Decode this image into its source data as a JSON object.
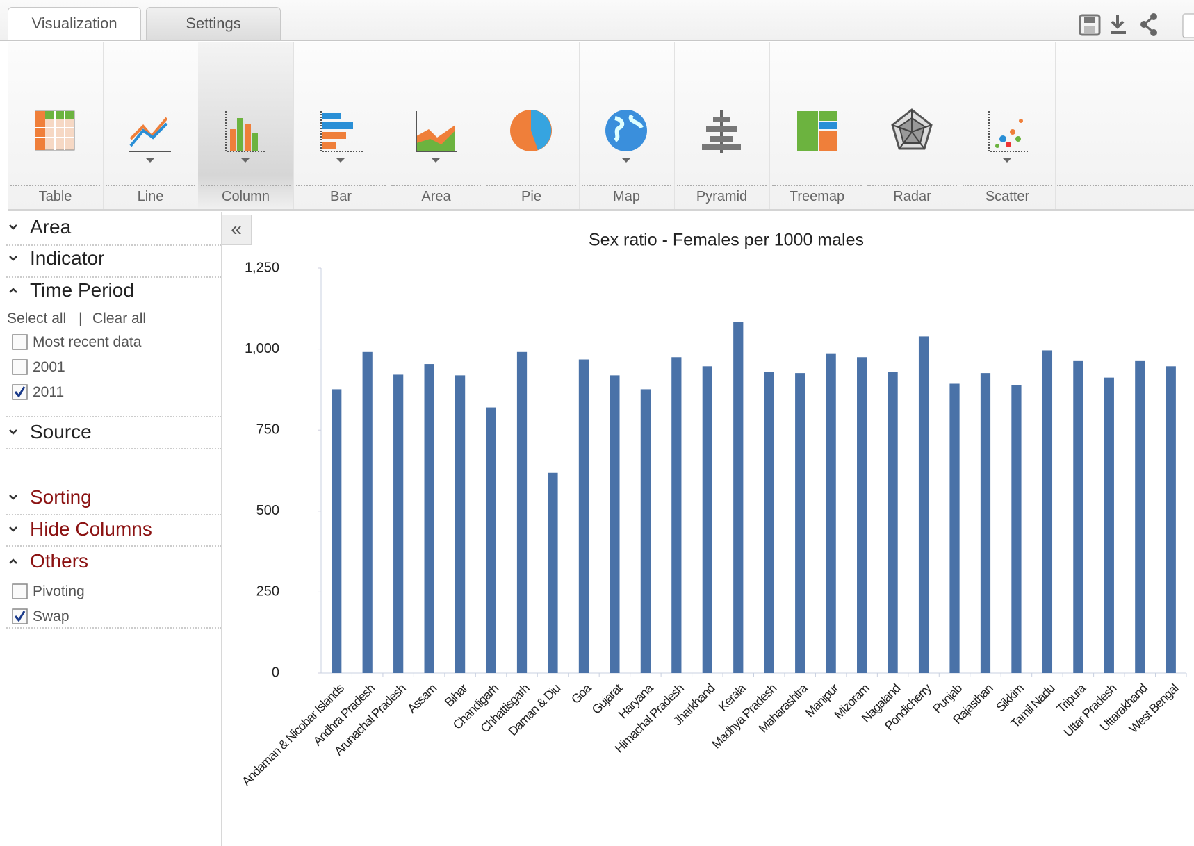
{
  "tabs": [
    "Visualization",
    "Settings"
  ],
  "toolbar": [
    "Table",
    "Line",
    "Column",
    "Bar",
    "Area",
    "Pie",
    "Map",
    "Pyramid",
    "Treemap",
    "Radar",
    "Scatter"
  ],
  "sidebar": {
    "area": "Area",
    "indicator": "Indicator",
    "time_period": "Time Period",
    "select_all": "Select all",
    "separator": "|",
    "clear_all": "Clear all",
    "time_options": [
      {
        "label": "Most recent data",
        "checked": false
      },
      {
        "label": "2001",
        "checked": false
      },
      {
        "label": "2011",
        "checked": true
      }
    ],
    "source": "Source",
    "sorting": "Sorting",
    "hide_columns": "Hide Columns",
    "others": "Others",
    "others_options": [
      {
        "label": "Pivoting",
        "checked": false
      },
      {
        "label": "Swap",
        "checked": true
      }
    ]
  },
  "collapse": "«",
  "chart_data": {
    "type": "bar",
    "title": "Sex ratio - Females per 1000 males",
    "categories": [
      "Andaman & Nicobar Islands",
      "Andhra Pradesh",
      "Arunachal Pradesh",
      "Assam",
      "Bihar",
      "Chandigarh",
      "Chhattisgarh",
      "Daman & Diu",
      "Goa",
      "Gujarat",
      "Haryana",
      "Himachal Pradesh",
      "Jharkhand",
      "Kerala",
      "Madhya Pradesh",
      "Maharashtra",
      "Manipur",
      "Mizoram",
      "Nagaland",
      "Pondicherry",
      "Punjab",
      "Rajasthan",
      "Sikkim",
      "Tamil Nadu",
      "Tripura",
      "Uttar Pradesh",
      "Uttarakhand",
      "West Bengal"
    ],
    "values": [
      876,
      991,
      921,
      954,
      919,
      820,
      991,
      618,
      968,
      919,
      876,
      975,
      947,
      1083,
      930,
      926,
      987,
      975,
      930,
      1039,
      893,
      926,
      888,
      996,
      963,
      912,
      963,
      947
    ],
    "color": "#4a72a8",
    "ylim": [
      0,
      1250
    ],
    "yticks": [
      0,
      250,
      500,
      750,
      {
        "value": 1000,
        "label": "1,000"
      },
      {
        "value": 1250,
        "label": "1,250"
      }
    ],
    "grid": false
  }
}
